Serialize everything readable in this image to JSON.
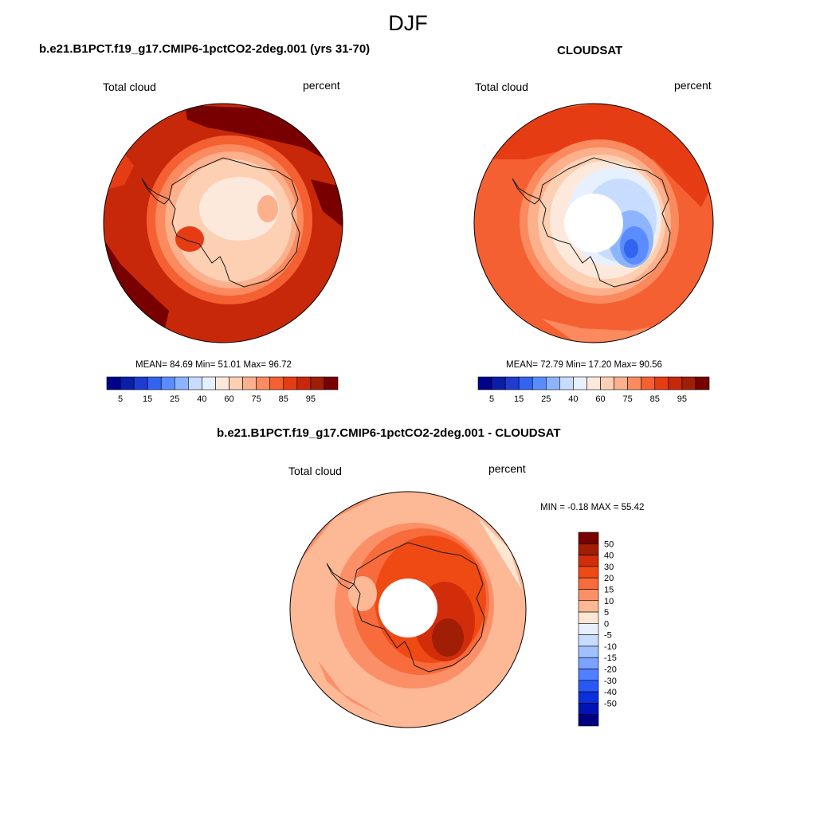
{
  "season": "DJF",
  "panels": [
    {
      "title": "b.e21.B1PCT.f19_g17.CMIP6-1pctCO2-2deg.001 (yrs 31-70)",
      "variable": "Total cloud",
      "units": "percent",
      "stats": "MEAN=  84.69  Min=  51.01  Max=  96.72"
    },
    {
      "title": "CLOUDSAT",
      "variable": "Total cloud",
      "units": "percent",
      "stats": "MEAN=  72.79  Min=  17.20  Max=  90.56"
    },
    {
      "title": "b.e21.B1PCT.f19_g17.CMIP6-1pctCO2-2deg.001 - CLOUDSAT",
      "variable": "Total cloud",
      "units": "percent",
      "stats": "MIN =  -0.18 MAX =  55.42"
    }
  ],
  "colorbar_abs": {
    "colors": [
      "#00008a",
      "#0a1ea8",
      "#1e3cd2",
      "#3264f0",
      "#5a8cff",
      "#8cb4ff",
      "#c8dcff",
      "#e6f0ff",
      "#fde9dc",
      "#fdd0b4",
      "#fcb08c",
      "#fb8a5e",
      "#f56032",
      "#e63c14",
      "#c8280a",
      "#a01e06",
      "#780000"
    ],
    "labels": [
      "5",
      "15",
      "25",
      "40",
      "60",
      "75",
      "85",
      "95"
    ],
    "label_boundaries": [
      1,
      3,
      5,
      7,
      9,
      11,
      13,
      15
    ]
  },
  "colorbar_diff": {
    "colors": [
      "#780000",
      "#a01e06",
      "#d22d0a",
      "#f04a14",
      "#f76b3c",
      "#fb9068",
      "#fdb896",
      "#fee6d2",
      "#e8f0ff",
      "#c8dcff",
      "#a0c0ff",
      "#7ca2ff",
      "#5080ff",
      "#2858f5",
      "#0a30dc",
      "#0014b4",
      "#000080"
    ],
    "labels": [
      "50",
      "40",
      "30",
      "20",
      "15",
      "10",
      "5",
      "0",
      "-5",
      "-10",
      "-15",
      "-20",
      "-30",
      "-40",
      "-50"
    ]
  },
  "colors": {
    "outline": "#000000",
    "coast": "#1a1a1a"
  }
}
